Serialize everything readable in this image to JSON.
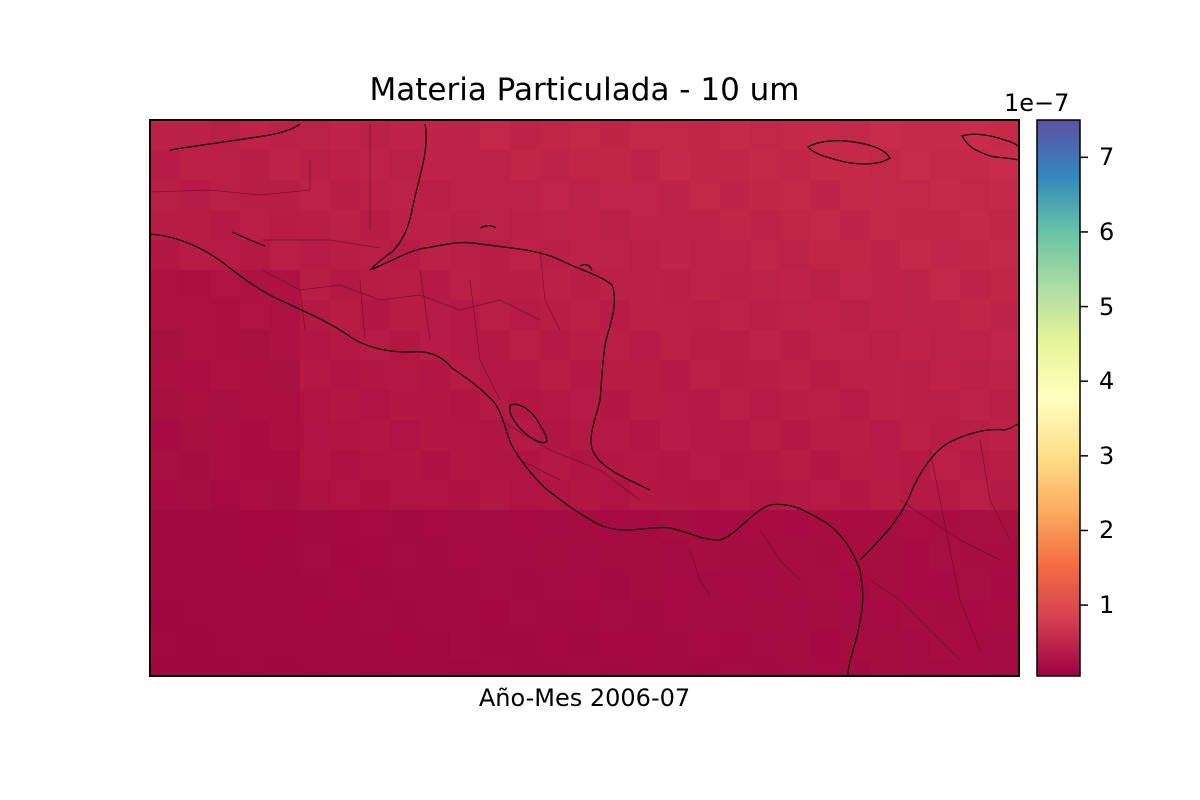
{
  "chart_data": {
    "type": "heatmap",
    "title": "Materia Particulada - 10 um",
    "xlabel": "Año-Mes 2006-07",
    "ylabel": "",
    "colormap": "Spectral",
    "colorbar": {
      "range": [
        0.05,
        7.5
      ],
      "exponent_label": "1e−7",
      "ticks": [
        1,
        2,
        3,
        4,
        5,
        6,
        7
      ],
      "tick_labels": [
        "1",
        "2",
        "3",
        "4",
        "5",
        "6",
        "7"
      ],
      "colors": [
        "#9e0142",
        "#d53e4f",
        "#f46d43",
        "#fdae61",
        "#fee08b",
        "#ffffbf",
        "#e6f598",
        "#abdda4",
        "#66c2a5",
        "#3288bd",
        "#5e4fa2"
      ]
    },
    "field_description": "values range roughly 0.1 to 0.4 ×1e-7 across the region",
    "grid": false,
    "legend": "colorbar at right"
  },
  "colors": {
    "low": "#a0073f",
    "mid": "#bb1d44",
    "high": "#c62a48",
    "coast": "#000000"
  }
}
